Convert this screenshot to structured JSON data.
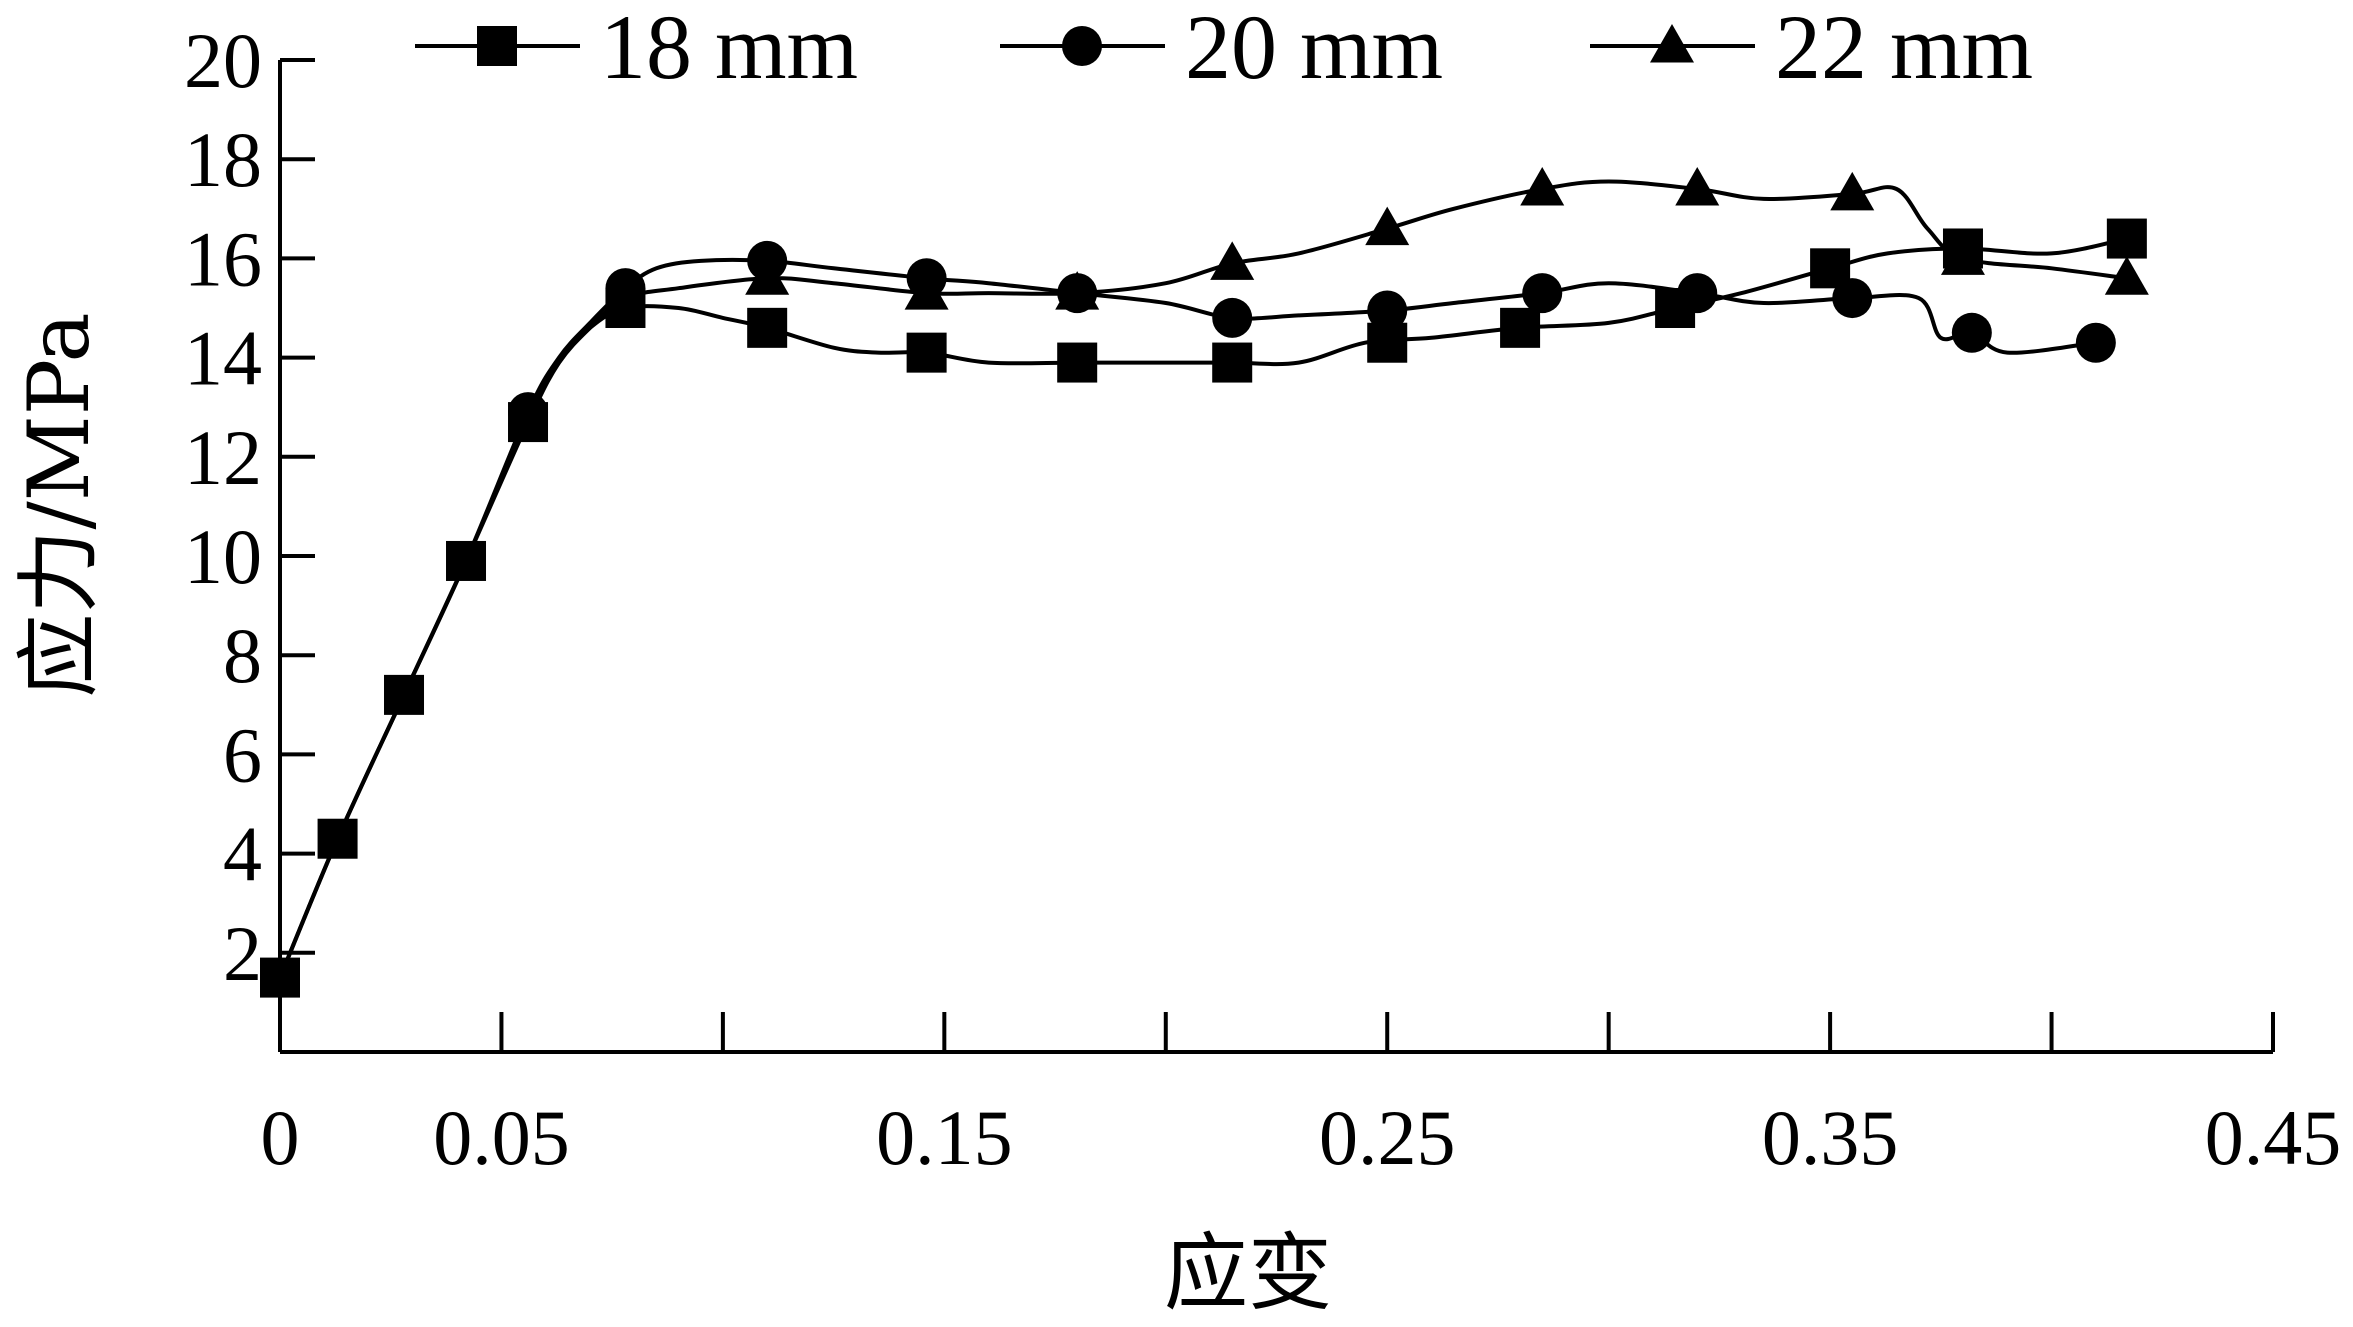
{
  "chart_data": {
    "type": "line",
    "title": "",
    "xlabel": "应变",
    "ylabel": "应力/MPa",
    "xlim": [
      0,
      0.45
    ],
    "ylim": [
      0,
      20
    ],
    "x_tick_labels": [
      "0",
      "0.05",
      "0.15",
      "0.25",
      "0.35",
      "0.45"
    ],
    "x_ticks": [
      0,
      0.05,
      0.1,
      0.15,
      0.2,
      0.25,
      0.3,
      0.35,
      0.4,
      0.45
    ],
    "x_labeled_ticks": [
      0,
      0.05,
      0.15,
      0.25,
      0.35,
      0.45
    ],
    "y_tick_labels": [
      "2",
      "4",
      "6",
      "8",
      "10",
      "12",
      "14",
      "16",
      "18",
      "20"
    ],
    "y_ticks": [
      2,
      4,
      6,
      8,
      10,
      12,
      14,
      16,
      18,
      20
    ],
    "legend_position": "top",
    "grid": false,
    "series": [
      {
        "name": "18 mm",
        "marker": "square",
        "color": "#000000",
        "x": [
          0.0,
          0.013,
          0.028,
          0.042,
          0.056,
          0.063,
          0.07,
          0.078,
          0.09,
          0.1,
          0.11,
          0.125,
          0.135,
          0.146,
          0.16,
          0.18,
          0.2,
          0.215,
          0.23,
          0.245,
          0.26,
          0.28,
          0.3,
          0.315,
          0.33,
          0.35,
          0.363,
          0.38,
          0.4,
          0.417
        ],
        "y": [
          1.5,
          4.3,
          7.2,
          9.9,
          12.7,
          13.9,
          14.6,
          15.0,
          15.0,
          14.8,
          14.6,
          14.2,
          14.1,
          14.1,
          13.9,
          13.9,
          13.9,
          13.9,
          13.9,
          14.3,
          14.4,
          14.6,
          14.7,
          15.0,
          15.3,
          15.8,
          16.1,
          16.2,
          16.1,
          16.4
        ]
      },
      {
        "name": "20 mm",
        "marker": "circle",
        "color": "#000000",
        "x": [
          0.0,
          0.013,
          0.028,
          0.042,
          0.056,
          0.063,
          0.07,
          0.078,
          0.085,
          0.095,
          0.11,
          0.125,
          0.146,
          0.16,
          0.18,
          0.2,
          0.215,
          0.23,
          0.25,
          0.265,
          0.285,
          0.3,
          0.32,
          0.335,
          0.355,
          0.37,
          0.375,
          0.382,
          0.39,
          0.41
        ],
        "y": [
          1.5,
          4.3,
          7.2,
          9.9,
          12.9,
          14.0,
          14.7,
          15.4,
          15.8,
          15.95,
          15.95,
          15.8,
          15.6,
          15.5,
          15.3,
          15.1,
          14.8,
          14.85,
          14.95,
          15.1,
          15.3,
          15.5,
          15.3,
          15.1,
          15.2,
          15.2,
          14.4,
          14.5,
          14.1,
          14.3
        ]
      },
      {
        "name": "22 mm",
        "marker": "triangle",
        "color": "#000000",
        "x": [
          0.0,
          0.013,
          0.028,
          0.042,
          0.056,
          0.063,
          0.07,
          0.078,
          0.09,
          0.11,
          0.125,
          0.146,
          0.16,
          0.18,
          0.2,
          0.215,
          0.23,
          0.25,
          0.265,
          0.285,
          0.3,
          0.32,
          0.335,
          0.355,
          0.365,
          0.372,
          0.38,
          0.4,
          0.417
        ],
        "y": [
          1.5,
          4.3,
          7.2,
          9.9,
          12.8,
          13.9,
          14.6,
          15.2,
          15.4,
          15.6,
          15.5,
          15.3,
          15.3,
          15.3,
          15.5,
          15.9,
          16.1,
          16.6,
          17.0,
          17.4,
          17.55,
          17.4,
          17.2,
          17.3,
          17.4,
          16.6,
          16.0,
          15.8,
          15.6
        ]
      }
    ],
    "markers": {
      "18 mm": [
        [
          0.0,
          1.5
        ],
        [
          0.013,
          4.3
        ],
        [
          0.028,
          7.2
        ],
        [
          0.042,
          9.9
        ],
        [
          0.056,
          12.7
        ],
        [
          0.078,
          15.0
        ],
        [
          0.11,
          14.6
        ],
        [
          0.146,
          14.1
        ],
        [
          0.18,
          13.9
        ],
        [
          0.215,
          13.9
        ],
        [
          0.25,
          14.3
        ],
        [
          0.28,
          14.6
        ],
        [
          0.315,
          15.0
        ],
        [
          0.35,
          15.8
        ],
        [
          0.38,
          16.2
        ],
        [
          0.417,
          16.4
        ]
      ],
      "20 mm": [
        [
          0.056,
          12.9
        ],
        [
          0.078,
          15.4
        ],
        [
          0.11,
          15.95
        ],
        [
          0.146,
          15.6
        ],
        [
          0.18,
          15.3
        ],
        [
          0.215,
          14.8
        ],
        [
          0.25,
          14.95
        ],
        [
          0.285,
          15.3
        ],
        [
          0.32,
          15.3
        ],
        [
          0.355,
          15.2
        ],
        [
          0.382,
          14.5
        ],
        [
          0.41,
          14.3
        ]
      ],
      "22 mm": [
        [
          0.11,
          15.6
        ],
        [
          0.146,
          15.3
        ],
        [
          0.18,
          15.3
        ],
        [
          0.215,
          15.9
        ],
        [
          0.25,
          16.6
        ],
        [
          0.285,
          17.4
        ],
        [
          0.32,
          17.4
        ],
        [
          0.355,
          17.3
        ],
        [
          0.38,
          16.0
        ],
        [
          0.417,
          15.6
        ]
      ]
    }
  }
}
